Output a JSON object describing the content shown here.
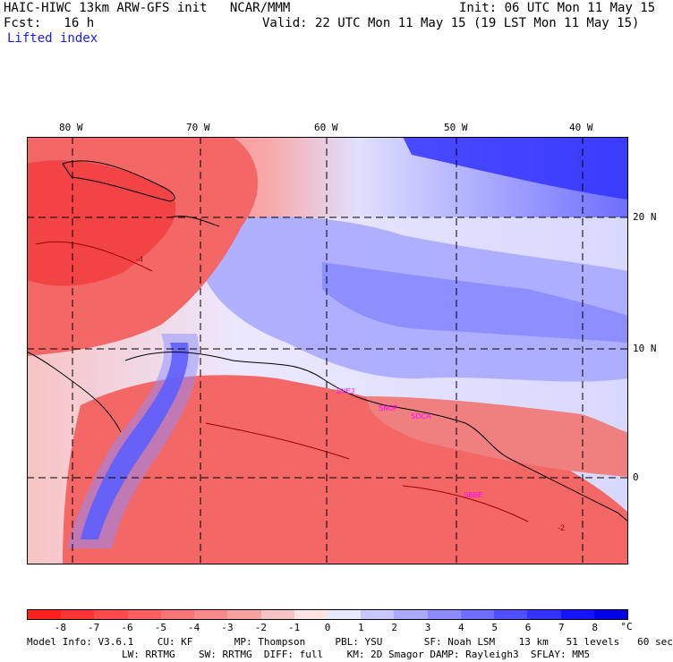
{
  "header": {
    "model_line": "HAIC-HIWC 13km ARW-GFS init   NCAR/MMM",
    "init": "Init: 06 UTC Mon 11 May 15",
    "fcst": "Fcst:   16 h",
    "valid": "Valid: 22 UTC Mon 11 May 15 (19 LST Mon 11 May 15)",
    "field": "Lifted index"
  },
  "map": {
    "lon_labels": [
      "80 W",
      "70 W",
      "60 W",
      "50 W",
      "40 W"
    ],
    "lat_labels": [
      "20 N",
      "10 N",
      "0"
    ],
    "station_labels": [
      "SYEJ",
      "SMJP",
      "SOCA",
      "SBBE"
    ],
    "contour_labels": [
      "-4",
      "-2"
    ],
    "colors": {
      "unstable_dark": "#ff3333",
      "unstable": "#f46767",
      "neutral": "#ffffff",
      "stable": "#8a8aff",
      "stable_dark": "#1a1aff",
      "station_label": "#ff00ff",
      "contour": "#9b0000"
    }
  },
  "colorbar": {
    "tick_labels": [
      "-8",
      "-7",
      "-6",
      "-5",
      "-4",
      "-3",
      "-2",
      "-1",
      "0",
      "1",
      "2",
      "3",
      "4",
      "5",
      "6",
      "7",
      "8"
    ],
    "unit": "°C",
    "colors": [
      "#ff2020",
      "#ff3535",
      "#ff4a4a",
      "#fb5f5f",
      "#f87575",
      "#f58b8b",
      "#f4a2a2",
      "#f8c3c3",
      "#ffe4e4",
      "#e8e8ff",
      "#c8c8ff",
      "#aaaaff",
      "#8c8cff",
      "#6e6eff",
      "#5050ff",
      "#3232ff",
      "#1414ff",
      "#0000e6"
    ]
  },
  "footer": {
    "line1": "Model Info: V3.6.1    CU: KF       MP: Thompson     PBL: YSU       SF: Noah LSM    13 km   51 levels   60 sec",
    "line2": "                LW: RRTMG    SW: RRTMG  DIFF: full    KM: 2D Smagor DAMP: Rayleigh3  SFLAY: MM5"
  }
}
